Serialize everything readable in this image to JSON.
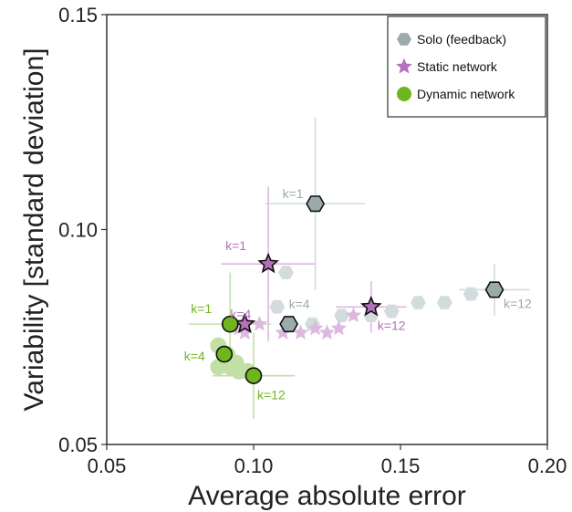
{
  "chart_data": {
    "type": "scatter",
    "xlabel": "Average absolute error",
    "ylabel": "Variability [standard deviation]",
    "xlim": [
      0.05,
      0.2
    ],
    "ylim": [
      0.05,
      0.15
    ],
    "xticks": [
      "0.05",
      "0.10",
      "0.15",
      "0.20"
    ],
    "yticks": [
      "0.05",
      "0.10",
      "0.15"
    ],
    "xtick_values": [
      0.05,
      0.1,
      0.15,
      0.2
    ],
    "ytick_values": [
      0.05,
      0.1,
      0.15
    ],
    "grid": false,
    "legend_position": "top-right",
    "colors": {
      "solo": "#9aabab",
      "solo_faint": "#d3dcdc",
      "static": "#b56fbb",
      "static_faint": "#ddb8e0",
      "dynamic": "#6fb51e",
      "dynamic_faint": "#c2e0a6"
    },
    "series": [
      {
        "name": "Solo (feedback)",
        "marker": "hexagon",
        "color_key": "solo",
        "faint_points": [
          {
            "x": 0.108,
            "y": 0.082
          },
          {
            "x": 0.111,
            "y": 0.09
          },
          {
            "x": 0.12,
            "y": 0.078
          },
          {
            "x": 0.13,
            "y": 0.08
          },
          {
            "x": 0.14,
            "y": 0.08
          },
          {
            "x": 0.147,
            "y": 0.081
          },
          {
            "x": 0.156,
            "y": 0.083
          },
          {
            "x": 0.165,
            "y": 0.083
          },
          {
            "x": 0.174,
            "y": 0.085
          }
        ],
        "highlight_points": [
          {
            "x": 0.121,
            "y": 0.106,
            "xerr": 0.017,
            "yerr": 0.02,
            "label": "k=1"
          },
          {
            "x": 0.112,
            "y": 0.078,
            "xerr": 0.0,
            "yerr": 0.0,
            "label": "k=4"
          },
          {
            "x": 0.182,
            "y": 0.086,
            "xerr": 0.012,
            "yerr": 0.006,
            "label": "k=12"
          }
        ]
      },
      {
        "name": "Static network",
        "marker": "star",
        "color_key": "static",
        "faint_points": [
          {
            "x": 0.095,
            "y": 0.077
          },
          {
            "x": 0.102,
            "y": 0.078
          },
          {
            "x": 0.11,
            "y": 0.076
          },
          {
            "x": 0.116,
            "y": 0.076
          },
          {
            "x": 0.121,
            "y": 0.077
          },
          {
            "x": 0.125,
            "y": 0.076
          },
          {
            "x": 0.129,
            "y": 0.077
          },
          {
            "x": 0.134,
            "y": 0.08
          },
          {
            "x": 0.097,
            "y": 0.076
          }
        ],
        "highlight_points": [
          {
            "x": 0.105,
            "y": 0.092,
            "xerr": 0.016,
            "yerr": 0.018,
            "label": "k=1"
          },
          {
            "x": 0.097,
            "y": 0.078,
            "xerr": 0.0,
            "yerr": 0.0,
            "label": "k=4"
          },
          {
            "x": 0.14,
            "y": 0.082,
            "xerr": 0.012,
            "yerr": 0.006,
            "label": "k=12"
          }
        ]
      },
      {
        "name": "Dynamic network",
        "marker": "circle",
        "color_key": "dynamic",
        "faint_points": [
          {
            "x": 0.088,
            "y": 0.073
          },
          {
            "x": 0.088,
            "y": 0.068
          },
          {
            "x": 0.092,
            "y": 0.068
          },
          {
            "x": 0.094,
            "y": 0.069
          },
          {
            "x": 0.095,
            "y": 0.067
          },
          {
            "x": 0.098,
            "y": 0.067
          },
          {
            "x": 0.091,
            "y": 0.071
          }
        ],
        "highlight_points": [
          {
            "x": 0.092,
            "y": 0.078,
            "xerr": 0.014,
            "yerr": 0.012,
            "label": "k=1"
          },
          {
            "x": 0.09,
            "y": 0.071,
            "xerr": 0.0,
            "yerr": 0.0,
            "label": "k=4"
          },
          {
            "x": 0.1,
            "y": 0.066,
            "xerr": 0.014,
            "yerr": 0.01,
            "label": "k=12"
          }
        ]
      }
    ]
  }
}
